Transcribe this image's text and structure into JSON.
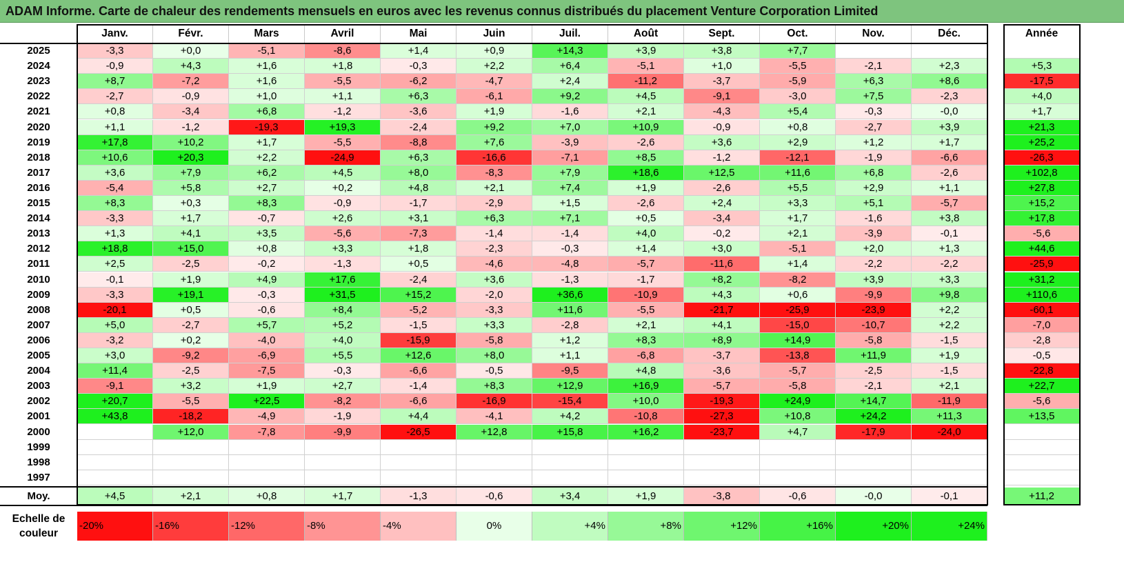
{
  "title": "ADAM Informe. Carte de chaleur des rendements mensuels en euros avec les revenus connus distribués du placement Venture Corporation Limited",
  "colors": {
    "title_bg": "#7ec47e",
    "max_red": "#f41010",
    "max_green": "#1ef01e",
    "neutral": "#ffffff"
  },
  "chart_data": {
    "type": "heatmap",
    "title": "ADAM Informe. Carte de chaleur des rendements mensuels en euros avec les revenus connus distribués du placement Venture Corporation Limited",
    "columns": [
      "Janv.",
      "Févr.",
      "Mars",
      "Avril",
      "Mai",
      "Juin",
      "Juil.",
      "Août",
      "Sept.",
      "Oct.",
      "Nov.",
      "Déc."
    ],
    "annual_header": "Année",
    "rows": [
      {
        "year": "2025",
        "values": [
          "-3,3",
          "+0,0",
          "-5,1",
          "-8,6",
          "+1,4",
          "+0,9",
          "+14,3",
          "+3,9",
          "+3,8",
          "+7,7",
          "",
          ""
        ],
        "annual": ""
      },
      {
        "year": "2024",
        "values": [
          "-0,9",
          "+4,3",
          "+1,6",
          "+1,8",
          "-0,3",
          "+2,2",
          "+6,4",
          "-5,1",
          "+1,0",
          "-5,5",
          "-2,1",
          "+2,3"
        ],
        "annual": "+5,3"
      },
      {
        "year": "2023",
        "values": [
          "+8,7",
          "-7,2",
          "+1,6",
          "-5,5",
          "-6,2",
          "-4,7",
          "+2,4",
          "-11,2",
          "-3,7",
          "-5,9",
          "+6,3",
          "+8,6"
        ],
        "annual": "-17,5"
      },
      {
        "year": "2022",
        "values": [
          "-2,7",
          "-0,9",
          "+1,0",
          "+1,1",
          "+6,3",
          "-6,1",
          "+9,2",
          "+4,5",
          "-9,1",
          "-3,0",
          "+7,5",
          "-2,3"
        ],
        "annual": "+4,0"
      },
      {
        "year": "2021",
        "values": [
          "+0,8",
          "-3,4",
          "+6,8",
          "-1,2",
          "-3,6",
          "+1,9",
          "-1,6",
          "+2,1",
          "-4,3",
          "+5,4",
          "-0,3",
          "-0,0"
        ],
        "annual": "+1,7"
      },
      {
        "year": "2020",
        "values": [
          "+1,1",
          "-1,2",
          "-19,3",
          "+19,3",
          "-2,4",
          "+9,2",
          "+7,0",
          "+10,9",
          "-0,9",
          "+0,8",
          "-2,7",
          "+3,9"
        ],
        "annual": "+21,3"
      },
      {
        "year": "2019",
        "values": [
          "+17,8",
          "+10,2",
          "+1,7",
          "-5,5",
          "-8,8",
          "+7,6",
          "-3,9",
          "-2,6",
          "+3,6",
          "+2,9",
          "+1,2",
          "+1,7"
        ],
        "annual": "+25,2"
      },
      {
        "year": "2018",
        "values": [
          "+10,6",
          "+20,3",
          "+2,2",
          "-24,9",
          "+6,3",
          "-16,6",
          "-7,1",
          "+8,5",
          "-1,2",
          "-12,1",
          "-1,9",
          "-6,6"
        ],
        "annual": "-26,3"
      },
      {
        "year": "2017",
        "values": [
          "+3,6",
          "+7,9",
          "+6,2",
          "+4,5",
          "+8,0",
          "-8,3",
          "+7,9",
          "+18,6",
          "+12,5",
          "+11,6",
          "+6,8",
          "-2,6"
        ],
        "annual": "+102,8"
      },
      {
        "year": "2016",
        "values": [
          "-5,4",
          "+5,8",
          "+2,7",
          "+0,2",
          "+4,8",
          "+2,1",
          "+7,4",
          "+1,9",
          "-2,6",
          "+5,5",
          "+2,9",
          "+1,1"
        ],
        "annual": "+27,8"
      },
      {
        "year": "2015",
        "values": [
          "+8,3",
          "+0,3",
          "+8,3",
          "-0,9",
          "-1,7",
          "-2,9",
          "+1,5",
          "-2,6",
          "+2,4",
          "+3,3",
          "+5,1",
          "-5,7"
        ],
        "annual": "+15,2"
      },
      {
        "year": "2014",
        "values": [
          "-3,3",
          "+1,7",
          "-0,7",
          "+2,6",
          "+3,1",
          "+6,3",
          "+7,1",
          "+0,5",
          "-3,4",
          "+1,7",
          "-1,6",
          "+3,8"
        ],
        "annual": "+17,8"
      },
      {
        "year": "2013",
        "values": [
          "+1,3",
          "+4,1",
          "+3,5",
          "-5,6",
          "-7,3",
          "-1,4",
          "-1,4",
          "+4,0",
          "-0,2",
          "+2,1",
          "-3,9",
          "-0,1"
        ],
        "annual": "-5,6"
      },
      {
        "year": "2012",
        "values": [
          "+18,8",
          "+15,0",
          "+0,8",
          "+3,3",
          "+1,8",
          "-2,3",
          "-0,3",
          "+1,4",
          "+3,0",
          "-5,1",
          "+2,0",
          "+1,3"
        ],
        "annual": "+44,6"
      },
      {
        "year": "2011",
        "values": [
          "+2,5",
          "-2,5",
          "-0,2",
          "-1,3",
          "+0,5",
          "-4,6",
          "-4,8",
          "-5,7",
          "-11,6",
          "+1,4",
          "-2,2",
          "-2,2"
        ],
        "annual": "-25,9"
      },
      {
        "year": "2010",
        "values": [
          "-0,1",
          "+1,9",
          "+4,9",
          "+17,6",
          "-2,4",
          "+3,6",
          "-1,3",
          "-1,7",
          "+8,2",
          "-8,2",
          "+3,9",
          "+3,3"
        ],
        "annual": "+31,2"
      },
      {
        "year": "2009",
        "values": [
          "-3,3",
          "+19,1",
          "-0,3",
          "+31,5",
          "+15,2",
          "-2,0",
          "+36,6",
          "-10,9",
          "+4,3",
          "+0,6",
          "-9,9",
          "+9,8"
        ],
        "annual": "+110,6"
      },
      {
        "year": "2008",
        "values": [
          "-20,1",
          "+0,5",
          "-0,6",
          "+8,4",
          "-5,2",
          "-3,3",
          "+11,6",
          "-5,5",
          "-21,7",
          "-25,9",
          "-23,9",
          "+2,2"
        ],
        "annual": "-60,1"
      },
      {
        "year": "2007",
        "values": [
          "+5,0",
          "-2,7",
          "+5,7",
          "+5,2",
          "-1,5",
          "+3,3",
          "-2,8",
          "+2,1",
          "+4,1",
          "-15,0",
          "-10,7",
          "+2,2"
        ],
        "annual": "-7,0"
      },
      {
        "year": "2006",
        "values": [
          "-3,2",
          "+0,2",
          "-4,0",
          "+4,0",
          "-15,9",
          "-5,8",
          "+1,2",
          "+8,3",
          "+8,9",
          "+14,9",
          "-5,8",
          "-1,5"
        ],
        "annual": "-2,8"
      },
      {
        "year": "2005",
        "values": [
          "+3,0",
          "-9,2",
          "-6,9",
          "+5,5",
          "+12,6",
          "+8,0",
          "+1,1",
          "-6,8",
          "-3,7",
          "-13,8",
          "+11,9",
          "+1,9"
        ],
        "annual": "-0,5"
      },
      {
        "year": "2004",
        "values": [
          "+11,4",
          "-2,5",
          "-7,5",
          "-0,3",
          "-6,6",
          "-0,5",
          "-9,5",
          "+4,8",
          "-3,6",
          "-5,7",
          "-2,5",
          "-1,5"
        ],
        "annual": "-22,8"
      },
      {
        "year": "2003",
        "values": [
          "-9,1",
          "+3,2",
          "+1,9",
          "+2,7",
          "-1,4",
          "+8,3",
          "+12,9",
          "+16,9",
          "-5,7",
          "-5,8",
          "-2,1",
          "+2,1"
        ],
        "annual": "+22,7"
      },
      {
        "year": "2002",
        "values": [
          "+20,7",
          "-5,5",
          "+22,5",
          "-8,2",
          "-6,6",
          "-16,9",
          "-15,4",
          "+10,0",
          "-19,3",
          "+24,9",
          "+14,7",
          "-11,9"
        ],
        "annual": "-5,6"
      },
      {
        "year": "2001",
        "values": [
          "+43,8",
          "-18,2",
          "-4,9",
          "-1,9",
          "+4,4",
          "-4,1",
          "+4,2",
          "-10,8",
          "-27,3",
          "+10,8",
          "+24,2",
          "+11,3"
        ],
        "annual": "+13,5"
      },
      {
        "year": "2000",
        "values": [
          "",
          "+12,0",
          "-7,8",
          "-9,9",
          "-26,5",
          "+12,8",
          "+15,8",
          "+16,2",
          "-23,7",
          "+4,7",
          "-17,9",
          "-24,0"
        ],
        "annual": ""
      },
      {
        "year": "1999",
        "values": [
          "",
          "",
          "",
          "",
          "",
          "",
          "",
          "",
          "",
          "",
          "",
          ""
        ],
        "annual": ""
      },
      {
        "year": "1998",
        "values": [
          "",
          "",
          "",
          "",
          "",
          "",
          "",
          "",
          "",
          "",
          "",
          ""
        ],
        "annual": ""
      },
      {
        "year": "1997",
        "values": [
          "",
          "",
          "",
          "",
          "",
          "",
          "",
          "",
          "",
          "",
          "",
          ""
        ],
        "annual": ""
      }
    ],
    "average": {
      "label": "Moy.",
      "values": [
        "+4,5",
        "+2,1",
        "+0,8",
        "+1,7",
        "-1,3",
        "-0,6",
        "+3,4",
        "+1,9",
        "-3,8",
        "-0,6",
        "-0,0",
        "-0,1"
      ],
      "annual": "+11,2"
    },
    "scale": {
      "label_line1": "Echelle de",
      "label_line2": "couleur",
      "labels": [
        "-20%",
        "-16%",
        "-12%",
        "-8%",
        "-4%",
        "0%",
        "+4%",
        "+8%",
        "+12%",
        "+16%",
        "+20%",
        "+24%"
      ]
    }
  }
}
